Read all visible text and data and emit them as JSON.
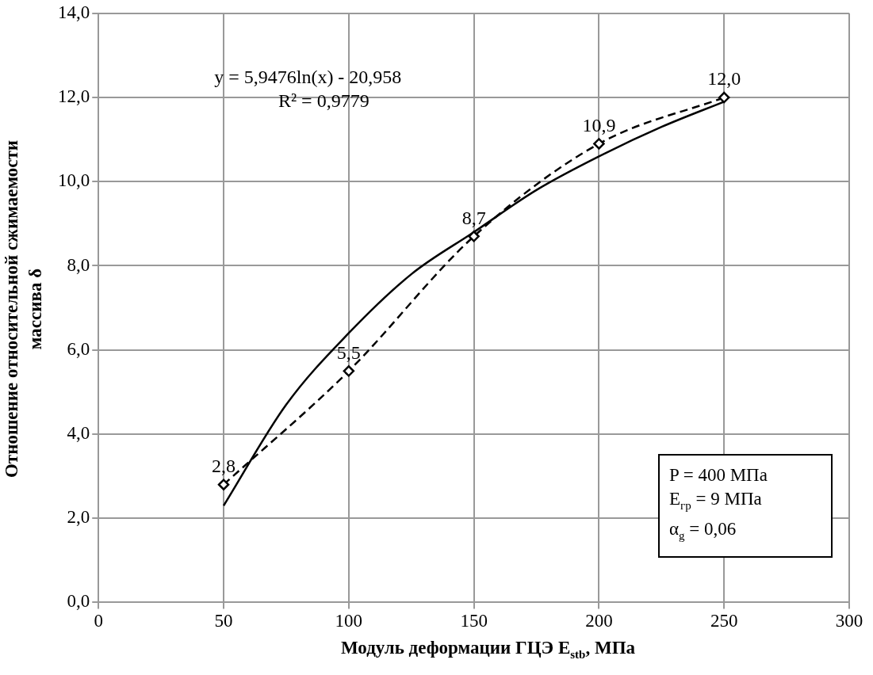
{
  "chart_data": {
    "type": "scatter",
    "xlabel": "Модуль деформации ГЦЭ E$_{stb}$, МПа",
    "ylabel": "Отношение относительной сжимаемости массива δ",
    "xlim": [
      0,
      300
    ],
    "xticks": [
      0,
      50,
      100,
      150,
      200,
      250,
      300
    ],
    "ylim": [
      0,
      14
    ],
    "yticks": [
      {
        "value": 0,
        "label": "0,0"
      },
      {
        "value": 2,
        "label": "2,0"
      },
      {
        "value": 4,
        "label": "4,0"
      },
      {
        "value": 6,
        "label": "6,0"
      },
      {
        "value": 8,
        "label": "8,0"
      },
      {
        "value": 10,
        "label": "10,0"
      },
      {
        "value": 12,
        "label": "12,0"
      },
      {
        "value": 14,
        "label": "14,0"
      }
    ],
    "grid": true,
    "legend": false,
    "series": [
      {
        "type": "line",
        "color": "#000000",
        "marker": "diamond",
        "line_style": "dashed",
        "x": [
          50,
          100,
          150,
          200,
          250
        ],
        "values": [
          2.8,
          5.5,
          8.7,
          10.9,
          12.0
        ],
        "value_labels": [
          "2,8",
          "5,5",
          "8,7",
          "10,9",
          "12,0"
        ]
      },
      {
        "type": "line",
        "color": "#000000",
        "marker": "none",
        "line_style": "solid",
        "x": [
          50,
          75,
          100,
          125,
          150,
          175,
          200,
          225,
          250
        ],
        "values": [
          2.3,
          4.7,
          6.4,
          7.8,
          8.8,
          9.8,
          10.6,
          11.3,
          11.9
        ]
      }
    ],
    "annotations": [
      "y = 5,9476ln(x) - 20,958",
      "R² = 0,9779",
      "P = 400 МПа",
      "E$_{гр}$ = 9 МПа",
      "α$_{g}$ = 0,06"
    ]
  }
}
